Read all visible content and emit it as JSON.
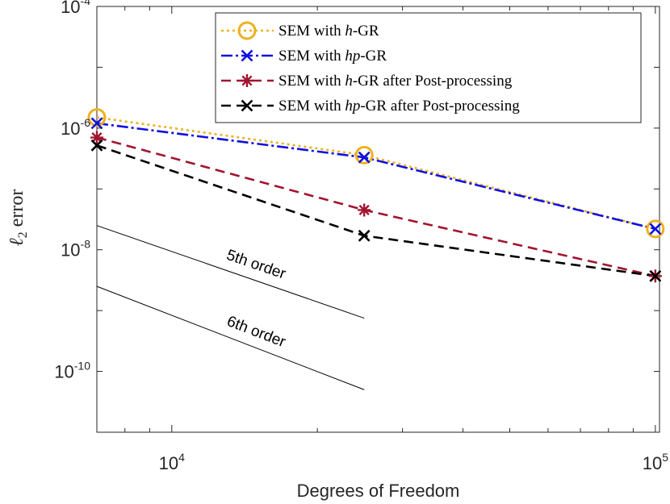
{
  "chart_data": {
    "type": "line",
    "xscale": "log",
    "yscale": "log",
    "xlabel": "Degrees of Freedom",
    "ylabel_symbol": "ℓ",
    "ylabel_sub": "2",
    "ylabel_word": "error",
    "xlim": [
      7000,
      102000
    ],
    "ylim": [
      1e-11,
      0.0001
    ],
    "x_ticks": [
      {
        "value": 10000,
        "base": "10",
        "exp": "4"
      },
      {
        "value": 100000,
        "base": "10",
        "exp": "5"
      }
    ],
    "y_ticks": [
      {
        "value": 0.0001,
        "base": "10",
        "exp": "-4"
      },
      {
        "value": 1e-06,
        "base": "10",
        "exp": "-6"
      },
      {
        "value": 1e-08,
        "base": "10",
        "exp": "-8"
      },
      {
        "value": 1e-10,
        "base": "10",
        "exp": "-10"
      }
    ],
    "series": [
      {
        "name_prefix": "SEM with ",
        "name_italic": "h",
        "name_suffix": "-GR",
        "color": "#EDB120",
        "dash": "3,4",
        "marker": "circle",
        "x": [
          7000,
          25000,
          100000
        ],
        "y": [
          1.5e-06,
          3.6e-07,
          2.2e-08
        ]
      },
      {
        "name_prefix": "SEM with ",
        "name_italic": "hp",
        "name_suffix": "-GR",
        "color": "#1010E0",
        "dash": "14,4,3,4",
        "marker": "x",
        "x": [
          7000,
          25000,
          100000
        ],
        "y": [
          1.2e-06,
          3.3e-07,
          2.2e-08
        ]
      },
      {
        "name_prefix": "SEM with ",
        "name_italic": "h",
        "name_suffix": "-GR after Post-processing",
        "color": "#A2142F",
        "dash": "12,7",
        "marker": "asterisk",
        "x": [
          7000,
          25000,
          100000
        ],
        "y": [
          7e-07,
          4.5e-08,
          3.7e-09
        ]
      },
      {
        "name_prefix": "SEM with ",
        "name_italic": "hp",
        "name_suffix": "-GR after Post-processing",
        "color": "#000000",
        "dash": "12,7",
        "marker": "x",
        "x": [
          7000,
          25000,
          100000
        ],
        "y": [
          5.2e-07,
          1.7e-08,
          3.7e-09
        ]
      }
    ],
    "reference_lines": [
      {
        "label": "5th order",
        "x": [
          7000,
          25000
        ],
        "y": [
          2.5e-08,
          7.5e-10
        ]
      },
      {
        "label": "6th order",
        "x": [
          7000,
          25000
        ],
        "y": [
          2.5e-09,
          5e-11
        ]
      }
    ],
    "legend_position": "top-right",
    "grid": false
  }
}
